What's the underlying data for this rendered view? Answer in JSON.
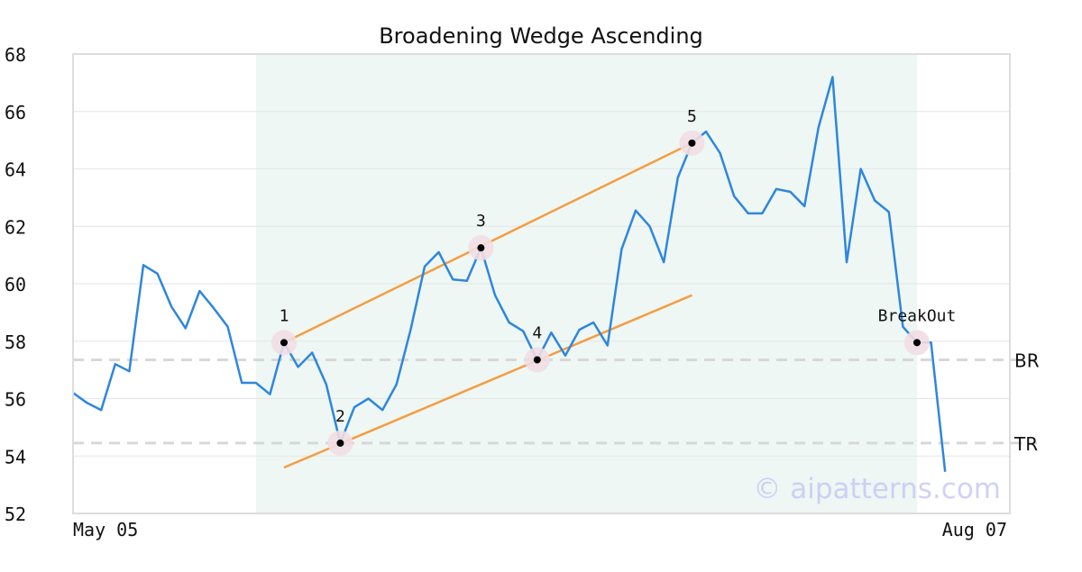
{
  "chart_data": {
    "type": "line",
    "title": "Broadening Wedge Ascending",
    "xlabel": "",
    "ylabel": "",
    "ylim": [
      52,
      68
    ],
    "x_tick_labels": [
      "May 05",
      "Aug 07"
    ],
    "y_ticks": [
      52,
      54,
      56,
      58,
      60,
      62,
      64,
      66,
      68
    ],
    "grid": "horizontal",
    "series": [
      {
        "values": [
          56.2,
          55.85,
          55.6,
          57.2,
          56.95,
          60.65,
          60.35,
          59.2,
          58.45,
          59.75,
          59.15,
          58.5,
          56.55,
          56.55,
          56.15,
          57.95,
          57.1,
          57.6,
          56.5,
          54.45,
          55.7,
          56.0,
          55.6,
          56.5,
          58.4,
          60.6,
          61.1,
          60.15,
          60.1,
          61.25,
          59.6,
          58.65,
          58.35,
          57.35,
          58.3,
          57.5,
          58.4,
          58.65,
          57.85,
          61.2,
          62.55,
          62.0,
          60.75,
          63.7,
          64.9,
          65.3,
          64.55,
          63.05,
          62.45,
          62.45,
          63.3,
          63.2,
          62.7,
          65.45,
          67.2,
          60.75,
          64.0,
          62.9,
          62.5,
          58.5,
          57.95,
          57.95,
          53.45
        ],
        "color": "#2e86de"
      }
    ],
    "pattern_points": [
      {
        "label": "1",
        "index": 15,
        "value": 57.95
      },
      {
        "label": "2",
        "index": 19,
        "value": 54.45
      },
      {
        "label": "3",
        "index": 29,
        "value": 61.25
      },
      {
        "label": "4",
        "index": 33,
        "value": 57.35
      },
      {
        "label": "5",
        "index": 44,
        "value": 64.9
      },
      {
        "label": "BreakOut",
        "index": 60,
        "value": 57.95
      }
    ],
    "trendlines": [
      {
        "name": "upper",
        "from": {
          "index": 15,
          "value": 57.95
        },
        "to": {
          "index": 44,
          "value": 64.9
        },
        "color": "#f59c42"
      },
      {
        "name": "lower",
        "from": {
          "index": 15,
          "value": 53.6
        },
        "to": {
          "index": 44,
          "value": 59.6
        },
        "color": "#f59c42"
      }
    ],
    "levels": [
      {
        "label": "BR",
        "value": 57.35
      },
      {
        "label": "TR",
        "value": 54.45
      }
    ],
    "shaded_range": {
      "from_index": 13,
      "to_index": 60,
      "color": "#eef7f3"
    },
    "watermark": "© aipatterns.com"
  }
}
